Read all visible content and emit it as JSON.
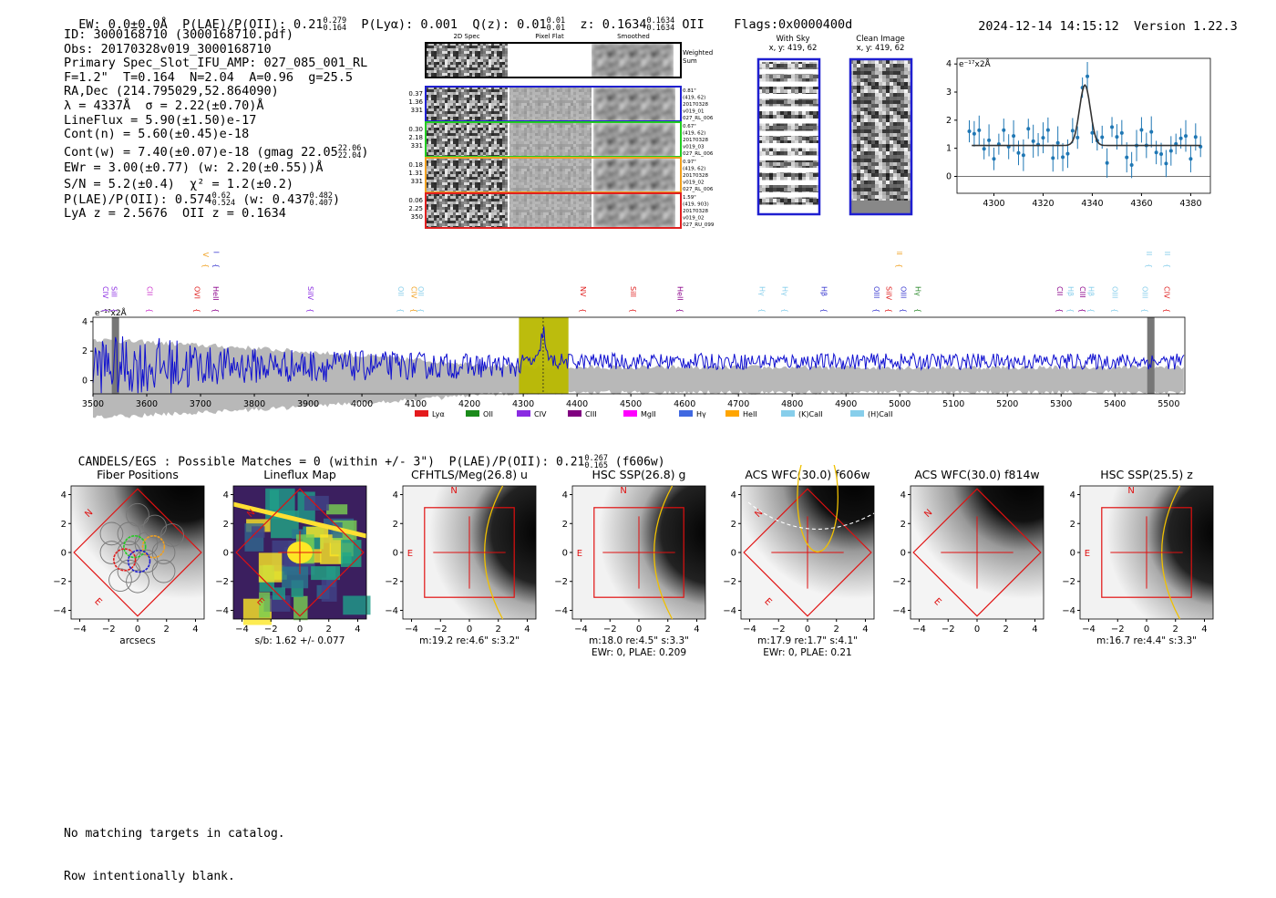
{
  "header": {
    "ew": "EW: 0.0±0.0Å",
    "plae_label": "P(LAE)/P(OII): 0.21",
    "plae_hi": "0.279",
    "plae_lo": "0.164",
    "plya": "P(Lyα): 0.001",
    "qz_label": "Q(z): 0.01",
    "qz_hi": "0.01",
    "qz_lo": "0.01",
    "z_label": "z: 0.1634",
    "z_hi": "0.1634",
    "z_lo": "0.1634",
    "z_tag": "OII",
    "flags": "Flags:0x0000400d",
    "timestamp": "2024-12-14 14:15:12",
    "version": "Version 1.22.3"
  },
  "info": {
    "id": "ID: 3000168710 (3000168710.pdf)",
    "obs": "Obs: 20170328v019_3000168710",
    "primary": "Primary Spec_Slot_IFU_AMP: 027_085_001_RL",
    "fwhm": "F=1.2\"  T=0.164  N=2.04  A=0.96  g=25.5",
    "radec": "RA,Dec (214.795029,52.864090)",
    "lambda": "λ = 4337Å  σ = 2.22(±0.70)Å",
    "lineflux": "LineFlux = 5.90(±1.50)e-17",
    "contn": "Cont(n) = 5.60(±0.45)e-18",
    "contw": "Cont(w) = 7.40(±0.07)e-18 (gmag 22.05",
    "contw_hi": "22.06",
    "contw_lo": "22.04",
    "contw_end": ")",
    "ewr": "EWr = 3.00(±0.77) (w: 2.20(±0.55))Å",
    "sn": "S/N = 5.2(±0.4)  χ² = 1.2(±0.2)",
    "plae": "P(LAE)/P(OII): 0.574",
    "plae_hi": "0.62",
    "plae_lo": "0.524",
    "plae_w": "(w: 0.437",
    "plae_w_hi": "0.482",
    "plae_w_lo": "0.407",
    "plae_w_end": ")",
    "lya": "LyA z = 2.5676  OII z = 0.1634"
  },
  "spec2d": {
    "col_labels": [
      "2D Spec",
      "Pixel Flat",
      "Smoothed"
    ],
    "weighted": "Weighted Sum",
    "rows": [
      {
        "stats": [
          "0.37",
          "1.36",
          "331"
        ],
        "notes": [
          "0.81\"",
          "(419, 62)",
          "20170328",
          "v019_01",
          "027_RL_006"
        ],
        "color": "#1f1fd0"
      },
      {
        "stats": [
          "0.30",
          "2.18",
          "331"
        ],
        "notes": [
          "0.67\"",
          "(419, 62)",
          "20170328",
          "v019_03",
          "027_RL_006"
        ],
        "color": "#22cc22"
      },
      {
        "stats": [
          "0.18",
          "1.31",
          "331"
        ],
        "notes": [
          "0.97\"",
          "(419, 62)",
          "20170328",
          "v019_02",
          "027_RL_006"
        ],
        "color": "#f0a020"
      },
      {
        "stats": [
          "0.06",
          "2.25",
          "350"
        ],
        "notes": [
          "1.59\"",
          "(419, 903)",
          "20170328",
          "v019_02",
          "027_RU_099"
        ],
        "color": "#e02020"
      }
    ]
  },
  "cutouts": {
    "with_sky": "With Sky",
    "with_sky_xy": "x, y: 419, 62",
    "clean": "Clean Image",
    "clean_xy": "x, y: 419, 62"
  },
  "line_fit": {
    "unit": "e⁻¹⁷x2Å",
    "x_ticks": [
      "4300",
      "4320",
      "4340",
      "4360",
      "4380"
    ],
    "y_ticks": [
      "0",
      "1",
      "2",
      "3",
      "4"
    ]
  },
  "spectrum": {
    "unit": "e⁻¹⁷x2Å",
    "x_ticks": [
      "3500",
      "3600",
      "3700",
      "3800",
      "3900",
      "4000",
      "4100",
      "4200",
      "4300",
      "4400",
      "4500",
      "4600",
      "4700",
      "4800",
      "4900",
      "5000",
      "5100",
      "5200",
      "5300",
      "5400",
      "5500"
    ],
    "y_ticks": [
      "0",
      "2",
      "4"
    ],
    "lines_top": [
      {
        "label": "SiIV",
        "x": 3710,
        "color": "#f0a020"
      },
      {
        "label": "OII",
        "x": 3730,
        "color": "#3b3bd0"
      },
      {
        "label": "CIII",
        "x": 5000,
        "color": "#f0a020"
      },
      {
        "label": "OIII",
        "x": 5464,
        "color": "#87ceeb"
      },
      {
        "label": "OIII",
        "x": 5498,
        "color": "#87ceeb"
      }
    ],
    "lines": [
      {
        "label": "CIV",
        "x": 3524,
        "color": "#8a2be2"
      },
      {
        "label": "SiII",
        "x": 3540,
        "color": "#8a2be2"
      },
      {
        "label": "CII",
        "x": 3606,
        "color": "#cc33cc"
      },
      {
        "label": "OVI",
        "x": 3694,
        "color": "#e02020"
      },
      {
        "label": "HeII",
        "x": 3729,
        "color": "#8a008a"
      },
      {
        "label": "SiIV",
        "x": 3905,
        "color": "#8a2be2"
      },
      {
        "label": "OII",
        "x": 4073,
        "color": "#87ceeb"
      },
      {
        "label": "CIV",
        "x": 4097,
        "color": "#f0a020"
      },
      {
        "label": "OII",
        "x": 4110,
        "color": "#87ceeb"
      },
      {
        "label": "NV",
        "x": 4412,
        "color": "#e02020"
      },
      {
        "label": "SiII",
        "x": 4505,
        "color": "#e02020"
      },
      {
        "label": "HeII",
        "x": 4592,
        "color": "#8a008a"
      },
      {
        "label": "Hγ",
        "x": 4745,
        "color": "#87ceeb"
      },
      {
        "label": "Hγ",
        "x": 4787,
        "color": "#87ceeb"
      },
      {
        "label": "Hβ",
        "x": 4860,
        "color": "#3b3bd0"
      },
      {
        "label": "OIII",
        "x": 4957,
        "color": "#3b3bd0"
      },
      {
        "label": "SiIV",
        "x": 4980,
        "color": "#e02020"
      },
      {
        "label": "OIII",
        "x": 5007,
        "color": "#3b3bd0"
      },
      {
        "label": "Hγ",
        "x": 5034,
        "color": "#2e8b2e"
      },
      {
        "label": "CII",
        "x": 5298,
        "color": "#8a008a"
      },
      {
        "label": "Hβ",
        "x": 5318,
        "color": "#87ceeb"
      },
      {
        "label": "CIII",
        "x": 5340,
        "color": "#8a008a"
      },
      {
        "label": "Hβ",
        "x": 5356,
        "color": "#87ceeb"
      },
      {
        "label": "OIII",
        "x": 5400,
        "color": "#87ceeb"
      },
      {
        "label": "OIII",
        "x": 5456,
        "color": "#87ceeb"
      },
      {
        "label": "CIV",
        "x": 5497,
        "color": "#e02020"
      }
    ],
    "legend": [
      {
        "label": "Lyα",
        "color": "#e41a1c"
      },
      {
        "label": "OII",
        "color": "#1a8a1a"
      },
      {
        "label": "CIV",
        "color": "#8a2be2"
      },
      {
        "label": "CIII",
        "color": "#800080"
      },
      {
        "label": "MgII",
        "color": "#ff00ff"
      },
      {
        "label": "Hγ",
        "color": "#4169e1"
      },
      {
        "label": "HeII",
        "color": "#ffa500"
      },
      {
        "label": "(K)CaII",
        "color": "#87ceeb"
      },
      {
        "label": "(H)CaII",
        "color": "#87ceeb"
      }
    ]
  },
  "candels": {
    "text": "CANDELS/EGS : Possible Matches = 0 (within +/- 3\")  P(LAE)/P(OII): 0.21",
    "hi": "0.267",
    "lo": "0.165",
    "band": "(f606w)"
  },
  "panels": [
    {
      "title": "Fiber Positions",
      "caption": "arcsecs",
      "caption2": ""
    },
    {
      "title": "Lineflux Map",
      "caption": "s/b: 1.62 +/- 0.077",
      "caption2": ""
    },
    {
      "title": "CFHTLS/Meg(26.8) u",
      "caption": "m:19.2  re:4.6\"  s:3.2\"",
      "caption2": ""
    },
    {
      "title": "HSC SSP(26.8) g",
      "caption": "m:18.0  re:4.5\"  s:3.3\"",
      "caption2": "EWr: 0, PLAE: 0.209"
    },
    {
      "title": "ACS WFC(30.0) f606w",
      "caption": "m:17.9  re:1.7\"  s:4.1\"",
      "caption2": "EWr: 0, PLAE: 0.21"
    },
    {
      "title": "ACS WFC(30.0) f814w",
      "caption": "",
      "caption2": ""
    },
    {
      "title": "HSC SSP(25.5) z",
      "caption": "m:16.7  re:4.4\"  s:3.3\"",
      "caption2": ""
    }
  ],
  "panel_axes": {
    "ticks": [
      "−4",
      "−2",
      "0",
      "2",
      "4"
    ],
    "n_label": "N",
    "e_label": "E"
  },
  "footer": {
    "line1": "No matching targets in catalog.",
    "line2": "Row intentionally blank."
  }
}
